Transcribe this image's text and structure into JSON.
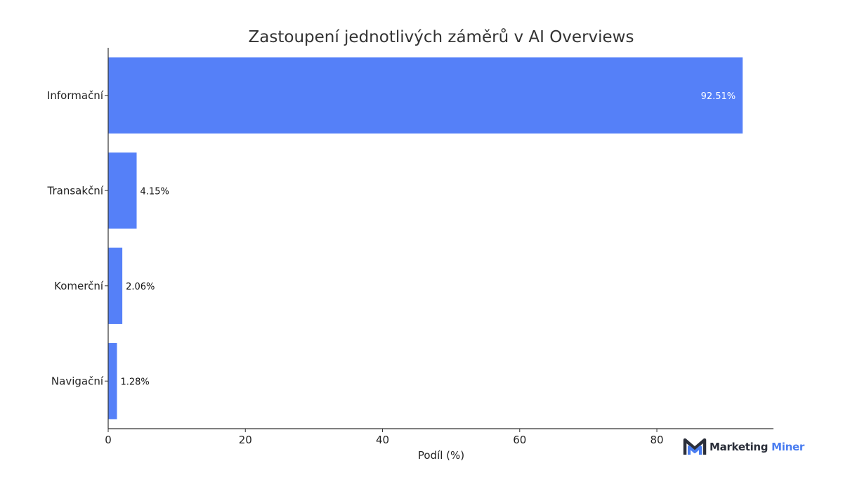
{
  "chart_data": {
    "type": "bar",
    "orientation": "horizontal",
    "title": "Zastoupení jednotlivých záměrů v AI Overviews",
    "xlabel": "Podíl (%)",
    "ylabel": "",
    "categories": [
      "Informační",
      "Transakční",
      "Komerční",
      "Navigační"
    ],
    "values": [
      92.51,
      4.15,
      2.06,
      1.28
    ],
    "value_labels": [
      "92.51%",
      "4.15%",
      "2.06%",
      "1.28%"
    ],
    "xlim": [
      0,
      97
    ],
    "xticks": [
      0,
      20,
      40,
      60,
      80
    ],
    "grid": false,
    "bar_color": "#5580f8"
  },
  "branding": {
    "logo_word1": "Marketing",
    "logo_word2": "Miner",
    "colors": {
      "dark": "#2b2f3a",
      "accent": "#4a7df0"
    }
  }
}
